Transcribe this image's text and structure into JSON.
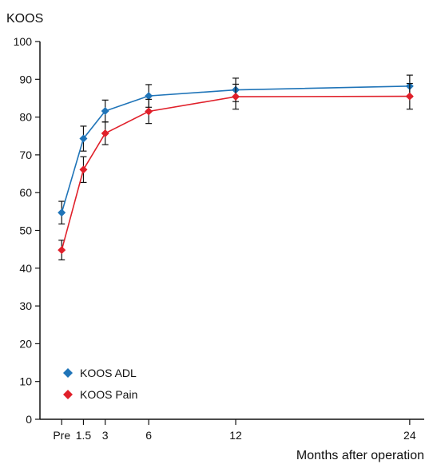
{
  "chart_data": {
    "type": "line",
    "title": "",
    "ylabel": "KOOS",
    "xlabel": "Months after operation",
    "x": [
      0,
      1.5,
      3,
      6,
      12,
      24
    ],
    "x_tick_labels": [
      "Pre",
      "1.5",
      "3",
      "6",
      "12",
      "24"
    ],
    "ylim": [
      0,
      100
    ],
    "y_ticks": [
      0,
      10,
      20,
      30,
      40,
      50,
      60,
      70,
      80,
      90,
      100
    ],
    "grid": false,
    "legend_position": "bottom-left",
    "series": [
      {
        "name": "KOOS ADL",
        "color": "#1f74b8",
        "marker": "diamond",
        "values": [
          54.7,
          74.3,
          81.6,
          85.6,
          87.2,
          88.2
        ],
        "error": [
          3.0,
          3.3,
          2.9,
          3.0,
          3.1,
          2.9
        ]
      },
      {
        "name": "KOOS Pain",
        "color": "#e0202a",
        "marker": "diamond",
        "values": [
          44.8,
          66.1,
          75.7,
          81.5,
          85.4,
          85.5
        ],
        "error": [
          2.6,
          3.4,
          3.0,
          3.2,
          3.3,
          3.4
        ]
      }
    ]
  }
}
